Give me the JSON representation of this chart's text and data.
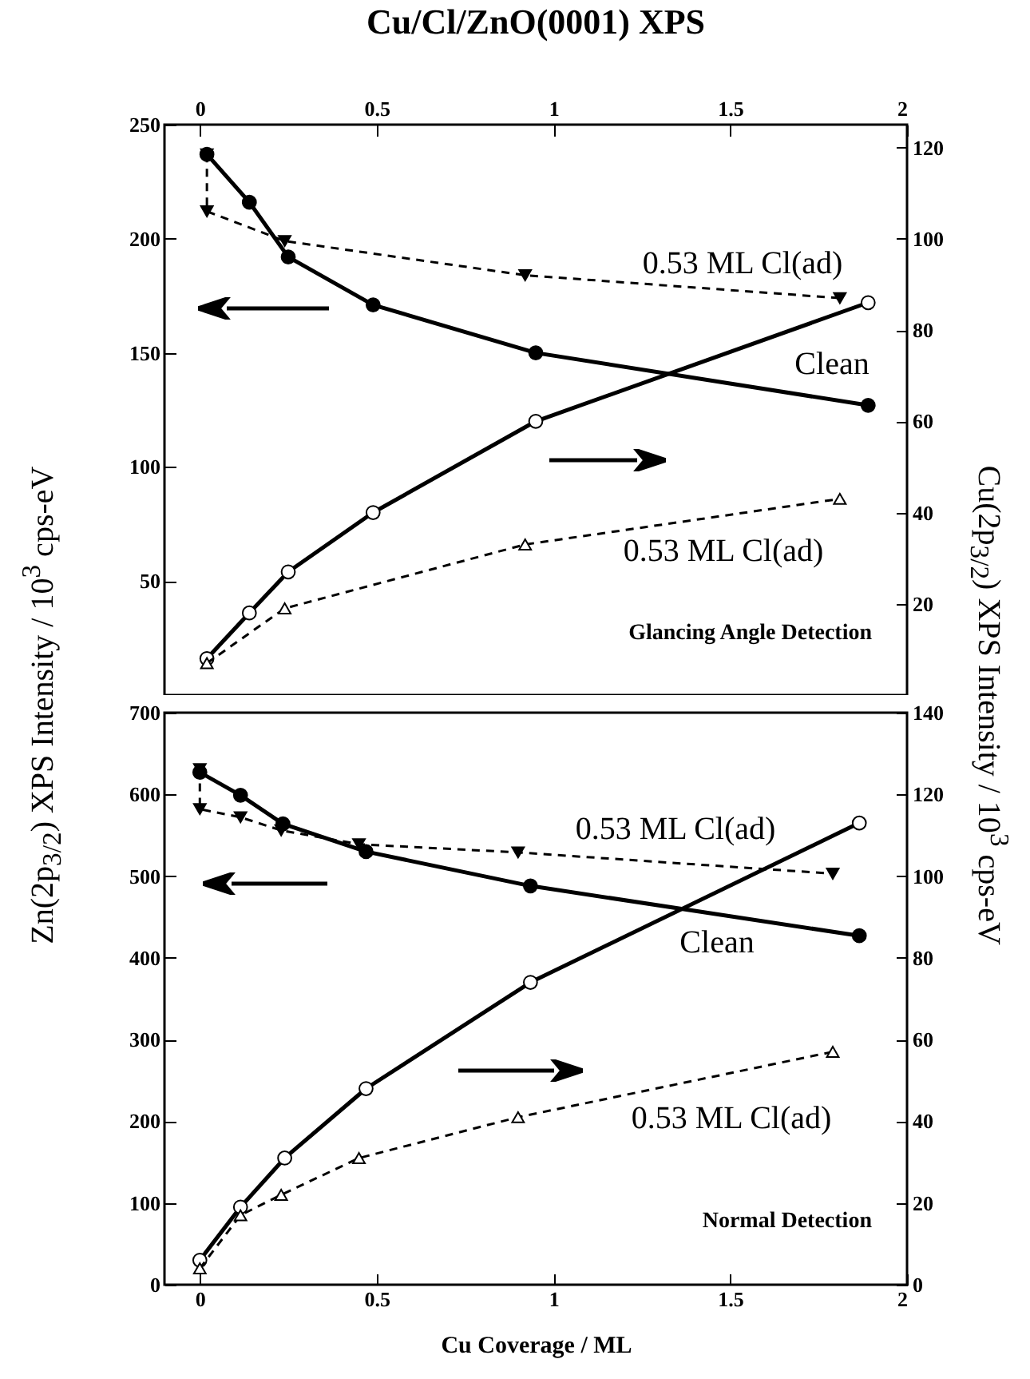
{
  "chart_data": [
    {
      "type": "line",
      "title": "Cu/Cl/ZnO(0001) XPS",
      "ylabel": "Zn(2p$_{3/2}$) XPS Intensity / 10$^{3}$ cps-eV",
      "y2label": "Cu(2p$_{3/2}$) XPS Intensity / 10$^{3}$ cps-eV",
      "xlim": [
        -0.1,
        2
      ],
      "xticks": [
        0,
        0.5,
        1,
        1.5,
        2
      ],
      "ylim": [
        0,
        250
      ],
      "yticks": [
        50,
        100,
        150,
        200,
        250
      ],
      "y2lim": [
        0,
        125
      ],
      "y2ticks": [
        20,
        40,
        60,
        80,
        100,
        120
      ],
      "grid": false,
      "series": [
        {
          "color": "#000000",
          "line_style": "solid",
          "marker": "circle",
          "x": [
            0.02,
            0.14,
            0.25,
            0.49,
            0.95,
            1.89
          ],
          "values": [
            237,
            216,
            192,
            171,
            150,
            127
          ]
        },
        {
          "color": "#000000",
          "line_style": "dashed",
          "marker": "triangle",
          "x": [
            0.02,
            0.02,
            0.24,
            0.92,
            1.81
          ],
          "values": [
            237,
            212,
            199,
            184,
            174
          ]
        },
        {
          "color": "#000000",
          "line_style": "solid",
          "marker": "circle",
          "axis": "y2",
          "x": [
            0.02,
            0.14,
            0.25,
            0.49,
            0.95,
            1.89
          ],
          "values": [
            8,
            18,
            27,
            40,
            60,
            86
          ]
        },
        {
          "color": "#000000",
          "line_style": "dashed",
          "marker": "triangle",
          "axis": "y2",
          "x": [
            0.02,
            0.24,
            0.92,
            1.81
          ],
          "values": [
            7,
            19,
            33,
            43
          ]
        }
      ],
      "annotations": [
        "0.53 ML Cl(ad)",
        "Clean",
        "0.53 ML Cl(ad)",
        "Glancing Angle Detection"
      ]
    },
    {
      "type": "line",
      "xlabel": "Cu Coverage / ML",
      "xlim": [
        -0.1,
        2
      ],
      "xticks": [
        0,
        0.5,
        1,
        1.5,
        2
      ],
      "ylim": [
        0,
        700
      ],
      "yticks": [
        0,
        100,
        200,
        300,
        400,
        500,
        600,
        700
      ],
      "y2lim": [
        0,
        140
      ],
      "y2ticks": [
        0,
        20,
        40,
        60,
        80,
        100,
        120,
        140
      ],
      "grid": false,
      "series": [
        {
          "color": "#000000",
          "line_style": "solid",
          "marker": "circle",
          "x": [
            0,
            0.115,
            0.235,
            0.47,
            0.935,
            1.865
          ],
          "values": [
            627,
            599,
            564,
            530,
            488,
            427
          ]
        },
        {
          "color": "#000000",
          "line_style": "dashed",
          "marker": "triangle",
          "x": [
            0,
            0,
            0.115,
            0.23,
            0.45,
            0.9,
            1.79
          ],
          "values": [
            631,
            582,
            572,
            556,
            539,
            529,
            503
          ]
        },
        {
          "color": "#000000",
          "line_style": "solid",
          "marker": "circle",
          "axis": "y2",
          "x": [
            0,
            0.115,
            0.24,
            0.47,
            0.935,
            1.865
          ],
          "values": [
            6,
            19,
            31,
            48,
            74,
            113
          ]
        },
        {
          "color": "#000000",
          "line_style": "dashed",
          "marker": "triangle",
          "axis": "y2",
          "x": [
            0,
            0.115,
            0.23,
            0.45,
            0.9,
            1.79
          ],
          "values": [
            4,
            17,
            22,
            31,
            41,
            57
          ]
        }
      ],
      "annotations": [
        "0.53 ML Cl(ad)",
        "Clean",
        "0.53 ML Cl(ad)",
        "Normal Detection"
      ]
    }
  ]
}
